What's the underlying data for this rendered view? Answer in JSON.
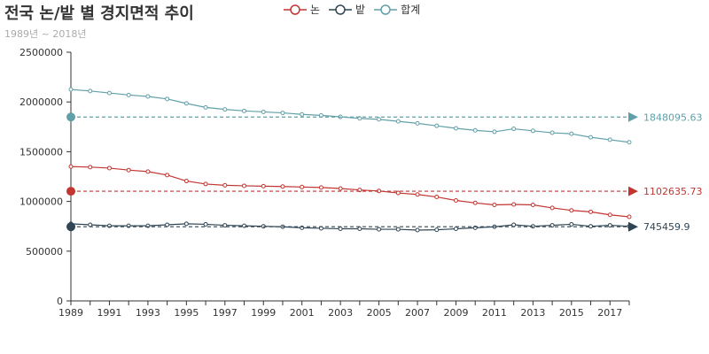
{
  "header": {
    "title": "전국 논/밭 별 경지면적 추이",
    "subtitle": "1989년 ~ 2018년"
  },
  "legend": {
    "items": [
      {
        "label": "논",
        "color": "#c23531"
      },
      {
        "label": "밭",
        "color": "#2f4554"
      },
      {
        "label": "합계",
        "color": "#61a0a8"
      }
    ]
  },
  "chart_data": {
    "type": "line",
    "title": "전국 논/밭 별 경지면적 추이",
    "subtitle": "1989년 ~ 2018년",
    "xlabel": "",
    "ylabel": "",
    "x": [
      1989,
      1990,
      1991,
      1992,
      1993,
      1994,
      1995,
      1996,
      1997,
      1998,
      1999,
      2000,
      2001,
      2002,
      2003,
      2004,
      2005,
      2006,
      2007,
      2008,
      2009,
      2010,
      2011,
      2012,
      2013,
      2014,
      2015,
      2016,
      2017,
      2018
    ],
    "x_tick_labels": [
      "1989",
      "1991",
      "1993",
      "1995",
      "1997",
      "1999",
      "2001",
      "2003",
      "2005",
      "2007",
      "2009",
      "2011",
      "2013",
      "2015",
      "2017"
    ],
    "ylim": [
      0,
      2500000
    ],
    "y_ticks": [
      0,
      500000,
      1000000,
      1500000,
      2000000,
      2500000
    ],
    "grid": false,
    "legend_position": "top",
    "series": [
      {
        "name": "논",
        "color": "#c23531",
        "values": [
          1350000,
          1345000,
          1335000,
          1315000,
          1300000,
          1265000,
          1205000,
          1175000,
          1162000,
          1157000,
          1153000,
          1150000,
          1145000,
          1140000,
          1130000,
          1115000,
          1105000,
          1085000,
          1070000,
          1045000,
          1010000,
          985000,
          965000,
          970000,
          965000,
          935000,
          910000,
          895000,
          865000,
          845000
        ],
        "mean": 1102635.73,
        "mean_label": "1102635.73"
      },
      {
        "name": "밭",
        "color": "#2f4554",
        "values": [
          775000,
          765000,
          755000,
          755000,
          755000,
          765000,
          775000,
          770000,
          760000,
          755000,
          750000,
          745000,
          735000,
          730000,
          725000,
          725000,
          720000,
          720000,
          712000,
          715000,
          725000,
          735000,
          745000,
          765000,
          750000,
          760000,
          770000,
          750000,
          760000,
          750000
        ],
        "mean": 745459.9,
        "mean_label": "745459.9"
      },
      {
        "name": "합계",
        "color": "#61a0a8",
        "values": [
          2125000,
          2110000,
          2090000,
          2070000,
          2055000,
          2030000,
          1985000,
          1945000,
          1925000,
          1910000,
          1900000,
          1890000,
          1875000,
          1865000,
          1850000,
          1835000,
          1825000,
          1805000,
          1785000,
          1760000,
          1735000,
          1715000,
          1700000,
          1730000,
          1710000,
          1690000,
          1680000,
          1645000,
          1620000,
          1595000
        ],
        "mean": 1848095.63,
        "mean_label": "1848095.63"
      }
    ]
  }
}
